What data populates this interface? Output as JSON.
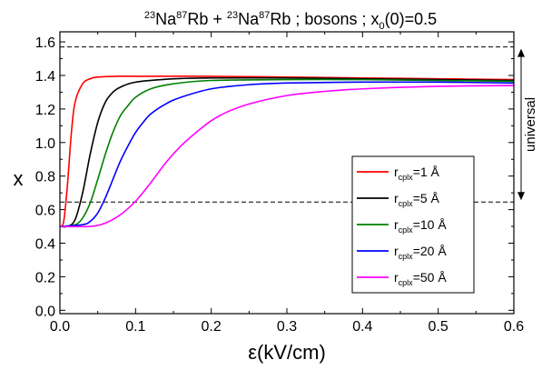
{
  "chart_data": {
    "type": "line",
    "title": {
      "iso1": "23",
      "atom1a": "Na",
      "iso2": "87",
      "atom1b": "Rb",
      "plus": " + ",
      "iso3": "23",
      "atom2a": "Na",
      "iso4": "87",
      "atom2b": "Rb",
      "rest": " ; bosons ; x",
      "sub": "0",
      "tail": "(0)=0.5"
    },
    "xlabel": "ε(kV/cm)",
    "ylabel": "x",
    "xlim": [
      0,
      0.6
    ],
    "ylim": [
      -0.02,
      1.66
    ],
    "xticks": [
      0.0,
      0.1,
      0.2,
      0.3,
      0.4,
      0.5,
      0.6
    ],
    "xtick_labels": [
      "0.0",
      "0.1",
      "0.2",
      "0.3",
      "0.4",
      "0.5",
      "0.6"
    ],
    "yticks": [
      0.0,
      0.2,
      0.4,
      0.6,
      0.8,
      1.0,
      1.2,
      1.4,
      1.6
    ],
    "ytick_labels": [
      "0.0",
      "0.2",
      "0.4",
      "0.6",
      "0.8",
      "1.0",
      "1.2",
      "1.4",
      "1.6"
    ],
    "reference_lines": [
      {
        "y": 1.57,
        "style": "dashed"
      },
      {
        "y": 0.645,
        "style": "dashed"
      }
    ],
    "annotation": {
      "text": "universal",
      "y_range": [
        0.645,
        1.57
      ]
    },
    "legend": {
      "placement": "lower-right"
    },
    "series": [
      {
        "name_main": "r",
        "name_sub": "cplx",
        "name_tail": "=1 Å",
        "color": "#ff0000",
        "x": [
          0.0,
          0.005,
          0.01,
          0.015,
          0.02,
          0.03,
          0.04,
          0.05,
          0.075,
          0.1,
          0.2,
          0.3,
          0.4,
          0.5,
          0.6
        ],
        "y": [
          0.5,
          0.53,
          0.75,
          1.05,
          1.24,
          1.35,
          1.38,
          1.39,
          1.395,
          1.395,
          1.395,
          1.39,
          1.385,
          1.38,
          1.375
        ]
      },
      {
        "name_main": "r",
        "name_sub": "cplx",
        "name_tail": "=5 Å",
        "color": "#000000",
        "x": [
          0.0,
          0.01,
          0.02,
          0.03,
          0.04,
          0.05,
          0.06,
          0.07,
          0.08,
          0.1,
          0.15,
          0.2,
          0.3,
          0.4,
          0.5,
          0.6
        ],
        "y": [
          0.5,
          0.5,
          0.54,
          0.7,
          0.93,
          1.12,
          1.24,
          1.3,
          1.33,
          1.36,
          1.38,
          1.385,
          1.385,
          1.38,
          1.375,
          1.37
        ]
      },
      {
        "name_main": "r",
        "name_sub": "cplx",
        "name_tail": "=10 Å",
        "color": "#008000",
        "x": [
          0.0,
          0.02,
          0.03,
          0.04,
          0.05,
          0.06,
          0.07,
          0.08,
          0.09,
          0.1,
          0.12,
          0.15,
          0.2,
          0.3,
          0.4,
          0.5,
          0.6
        ],
        "y": [
          0.5,
          0.51,
          0.55,
          0.64,
          0.78,
          0.93,
          1.06,
          1.16,
          1.22,
          1.27,
          1.32,
          1.35,
          1.37,
          1.375,
          1.375,
          1.37,
          1.365
        ]
      },
      {
        "name_main": "r",
        "name_sub": "cplx",
        "name_tail": "=20 Å",
        "color": "#0000ff",
        "x": [
          0.0,
          0.03,
          0.04,
          0.05,
          0.06,
          0.07,
          0.08,
          0.09,
          0.1,
          0.11,
          0.12,
          0.14,
          0.16,
          0.2,
          0.25,
          0.3,
          0.4,
          0.5,
          0.6
        ],
        "y": [
          0.5,
          0.51,
          0.53,
          0.58,
          0.67,
          0.78,
          0.89,
          0.98,
          1.06,
          1.12,
          1.17,
          1.23,
          1.27,
          1.32,
          1.345,
          1.355,
          1.36,
          1.36,
          1.355
        ]
      },
      {
        "name_main": "r",
        "name_sub": "cplx",
        "name_tail": "=50 Å",
        "color": "#ff00ff",
        "x": [
          0.0,
          0.04,
          0.06,
          0.08,
          0.1,
          0.12,
          0.14,
          0.16,
          0.18,
          0.2,
          0.22,
          0.25,
          0.3,
          0.35,
          0.4,
          0.5,
          0.6
        ],
        "y": [
          0.5,
          0.5,
          0.52,
          0.57,
          0.65,
          0.76,
          0.88,
          0.98,
          1.06,
          1.13,
          1.18,
          1.23,
          1.28,
          1.305,
          1.32,
          1.335,
          1.34
        ]
      }
    ]
  }
}
